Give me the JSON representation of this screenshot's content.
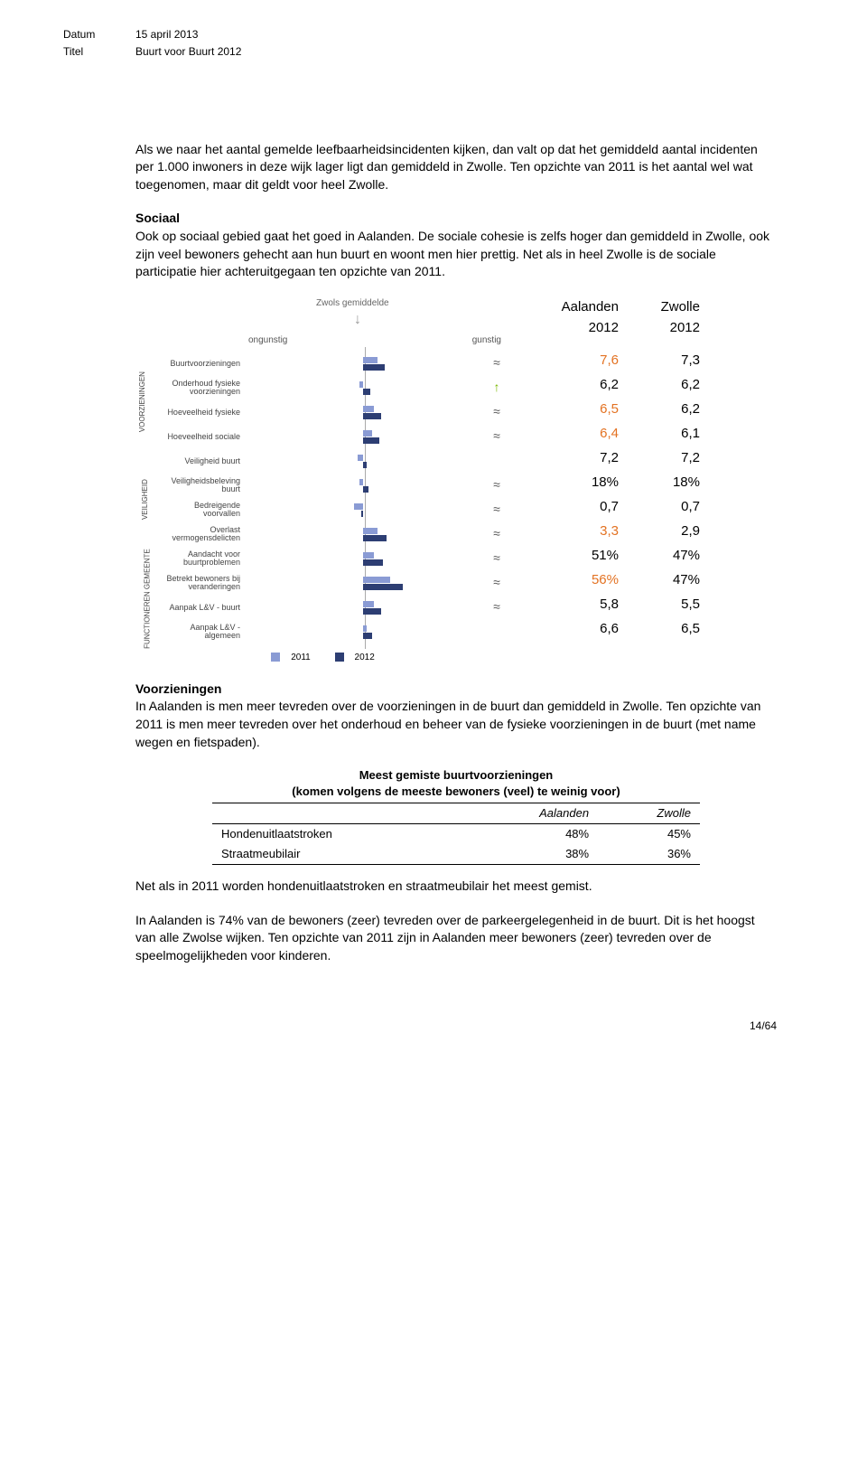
{
  "meta": {
    "datum_label": "Datum",
    "datum": "15 april 2013",
    "titel_label": "Titel",
    "titel": "Buurt voor Buurt 2012"
  },
  "p1": "Als we naar het aantal gemelde leefbaarheidsincidenten kijken, dan valt op dat het gemiddeld aantal incidenten per 1.000 inwoners in deze wijk lager ligt dan gemiddeld in Zwolle. Ten opzichte van 2011 is het aantal wel wat toegenomen, maar dit geldt voor heel Zwolle.",
  "h_sociaal": "Sociaal",
  "p2": "Ook op sociaal gebied gaat het goed in Aalanden. De sociale cohesie is zelfs hoger dan gemiddeld in Zwolle, ook zijn veel bewoners gehecht aan hun buurt en woont men hier prettig. Net als in heel Zwolle is de sociale participatie hier achteruitgegaan ten opzichte van 2011.",
  "chart": {
    "zwols": "Zwols gemiddelde",
    "ongunstig": "ongunstig",
    "gunstig": "gunstig",
    "col1": "Aalanden",
    "col2": "Zwolle",
    "year": "2012",
    "cat1": "VOORZIENINGEN",
    "cat2": "VEILIGHEID",
    "cat3": "FUNCTIONEREN GEMEENTE",
    "legend_2011": "2011",
    "legend_2012": "2012",
    "rows": [
      {
        "label": "Buurtvoorzieningen",
        "b11": 8,
        "b12": 12,
        "trend": "≈",
        "v1": "7,6",
        "c1": "orange",
        "v2": "7,3"
      },
      {
        "label": "Onderhoud fysieke voorzieningen",
        "b11": -2,
        "b12": 4,
        "trend": "↑",
        "tclass": "trend-up",
        "v1": "6,2",
        "v2": "6,2"
      },
      {
        "label": "Hoeveelheid fysieke",
        "b11": 6,
        "b12": 10,
        "trend": "≈",
        "v1": "6,5",
        "c1": "orange",
        "v2": "6,2"
      },
      {
        "label": "Hoeveelheid sociale",
        "b11": 5,
        "b12": 9,
        "trend": "≈",
        "v1": "6,4",
        "c1": "orange",
        "v2": "6,1"
      },
      {
        "label": "Veiligheid buurt",
        "b11": -3,
        "b12": 2,
        "trend": "",
        "v1": "7,2",
        "v2": "7,2"
      },
      {
        "label": "Veiligheidsbeleving buurt",
        "b11": -2,
        "b12": 3,
        "trend": "≈",
        "v1": "18%",
        "v2": "18%"
      },
      {
        "label": "Bedreigende voorvallen",
        "b11": -5,
        "b12": -1,
        "trend": "≈",
        "v1": "0,7",
        "v2": "0,7"
      },
      {
        "label": "Overlast vermogensdelicten",
        "b11": 8,
        "b12": 13,
        "trend": "≈",
        "v1": "3,3",
        "c1": "orange",
        "v2": "2,9"
      },
      {
        "label": "Aandacht voor buurtproblemen",
        "b11": 6,
        "b12": 11,
        "trend": "≈",
        "v1": "51%",
        "v2": "47%"
      },
      {
        "label": "Betrekt bewoners bij veranderingen",
        "b11": 15,
        "b12": 22,
        "trend": "≈",
        "v1": "56%",
        "c1": "orange",
        "v2": "47%"
      },
      {
        "label": "Aanpak L&V - buurt",
        "b11": 6,
        "b12": 10,
        "trend": "≈",
        "v1": "5,8",
        "v2": "5,5"
      },
      {
        "label": "Aanpak L&V - algemeen",
        "b11": 2,
        "b12": 5,
        "trend": "",
        "v1": "6,6",
        "v2": "6,5"
      }
    ]
  },
  "h_voorz": "Voorzieningen",
  "p3": "In Aalanden is men meer tevreden over de voorzieningen in de buurt dan gemiddeld in Zwolle. Ten opzichte van 2011 is men meer tevreden over het onderhoud en beheer van de fysieke voorzieningen in de buurt (met name wegen en fietspaden).",
  "table": {
    "title": "Meest gemiste buurtvoorzieningen",
    "sub": "(komen volgens de meeste bewoners (veel) te weinig voor)",
    "h1": "Aalanden",
    "h2": "Zwolle",
    "rows": [
      {
        "label": "Hondenuitlaatstroken",
        "v1": "48%",
        "v2": "45%"
      },
      {
        "label": "Straatmeubilair",
        "v1": "38%",
        "v2": "36%"
      }
    ]
  },
  "p4": "Net als in 2011 worden hondenuitlaatstroken en straatmeubilair het meest gemist.",
  "p5": "In Aalanden is 74% van de bewoners (zeer) tevreden over de parkeergelegenheid in de buurt. Dit is het hoogst van alle Zwolse wijken. Ten opzichte van 2011 zijn in Aalanden meer bewoners (zeer) tevreden over de speelmogelijkheden voor kinderen.",
  "footer": "14/64"
}
